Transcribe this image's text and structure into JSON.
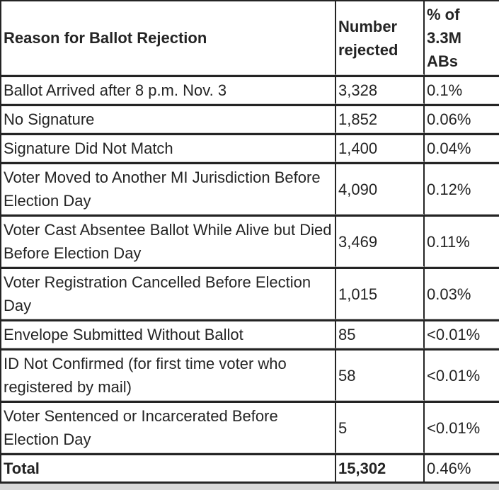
{
  "chart_data": {
    "type": "table",
    "columns": [
      "Reason for Ballot Rejection",
      "Number rejected",
      "% of 3.3M ABs"
    ],
    "rows": [
      [
        "Ballot Arrived after 8 p.m. Nov. 3",
        "3,328",
        "0.1%"
      ],
      [
        "No Signature",
        "1,852",
        "0.06%"
      ],
      [
        "Signature Did Not Match",
        "1,400",
        "0.04%"
      ],
      [
        "Voter Moved to Another MI Jurisdiction Before Election Day",
        "4,090",
        "0.12%"
      ],
      [
        "Voter Cast Absentee Ballot While Alive but Died Before Election Day",
        "3,469",
        "0.11%"
      ],
      [
        "Voter Registration Cancelled Before Election Day",
        "1,015",
        "0.03%"
      ],
      [
        "Envelope Submitted Without Ballot",
        "85",
        "<0.01%"
      ],
      [
        "ID Not Confirmed (for first time voter who registered by mail)",
        "58",
        "<0.01%"
      ],
      [
        "Voter Sentenced or Incarcerated Before Election Day",
        "5",
        "<0.01%"
      ]
    ],
    "total": [
      "Total",
      "15,302",
      "0.46%"
    ],
    "layout_hints": {
      "grid": "full borders",
      "header_bold": true,
      "total_bold_columns": [
        0,
        1
      ]
    }
  },
  "colors": {
    "border_dark": "#242424",
    "divider_light": "#cccccc",
    "text": "#242424",
    "background": "#ffffff",
    "bottom_strip": "#d8d8d8"
  }
}
